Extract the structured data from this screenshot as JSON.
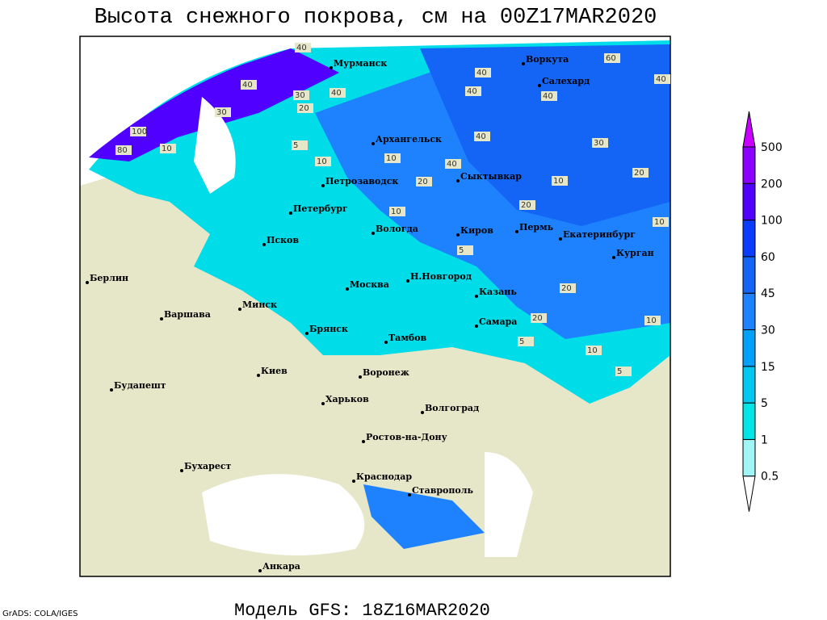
{
  "header": {
    "title": "Высота снежного покрова, см на 00Z17MAR2020"
  },
  "footer": {
    "model": "Модель GFS: 18Z16MAR2020",
    "credit": "GrADS: COLA/IGES"
  },
  "legend": {
    "levels": [
      0.5,
      1,
      5,
      15,
      30,
      45,
      60,
      100,
      200,
      500
    ],
    "colors": [
      "#ffffff",
      "#a0f5f5",
      "#00e6e6",
      "#00c8f0",
      "#00a0ff",
      "#1e82ff",
      "#1464f5",
      "#0a3cff",
      "#5000ff",
      "#8c00ff",
      "#c800ff"
    ]
  },
  "cities": [
    "Мурманск",
    "Воркута",
    "Салехард",
    "Архангельск",
    "Сыктывкар",
    "Петрозаводск",
    "Петербург",
    "Вологда",
    "Киров",
    "Пермь",
    "Екатеринбург",
    "Курган",
    "Псков",
    "Берлин",
    "Н.Новгород",
    "Москва",
    "Казань",
    "Минск",
    "Варшава",
    "Самара",
    "Брянск",
    "Тамбов",
    "Воронеж",
    "Киев",
    "Будапешт",
    "Харьков",
    "Волгоград",
    "Ростов-на-Дону",
    "Бухарест",
    "Краснодар",
    "Ставрополь",
    "Анкара"
  ],
  "contour_labels": [
    40,
    40,
    100,
    80,
    30,
    10,
    40,
    30,
    20,
    40,
    5,
    10,
    40,
    40,
    10,
    20,
    10,
    20,
    60,
    40,
    10,
    30,
    20,
    40,
    10,
    5,
    20,
    5,
    10,
    10,
    5,
    20,
    40
  ]
}
